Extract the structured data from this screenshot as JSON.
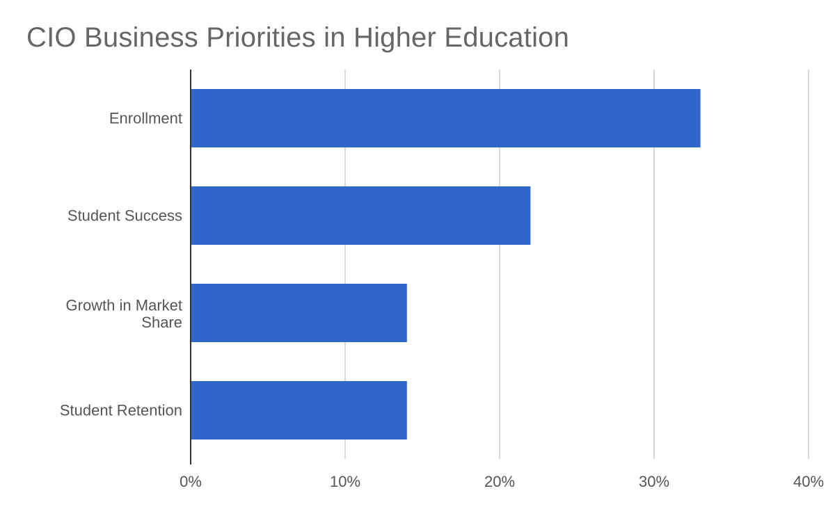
{
  "chart_data": {
    "type": "bar",
    "orientation": "horizontal",
    "title": "CIO Business Priorities in Higher Education",
    "categories": [
      "Enrollment",
      "Student Success",
      "Growth in Market Share",
      "Student Retention"
    ],
    "values": [
      33,
      22,
      14,
      14
    ],
    "xlim": [
      0,
      40
    ],
    "x_ticks": [
      "0%",
      "10%",
      "20%",
      "30%",
      "40%"
    ],
    "xlabel": "",
    "ylabel": "",
    "grid": true,
    "legend": "none",
    "colors": {
      "bar": "#3366cc",
      "grid": "#cccccc",
      "axis": "#333333",
      "text": "#555555",
      "title": "#666666"
    }
  }
}
